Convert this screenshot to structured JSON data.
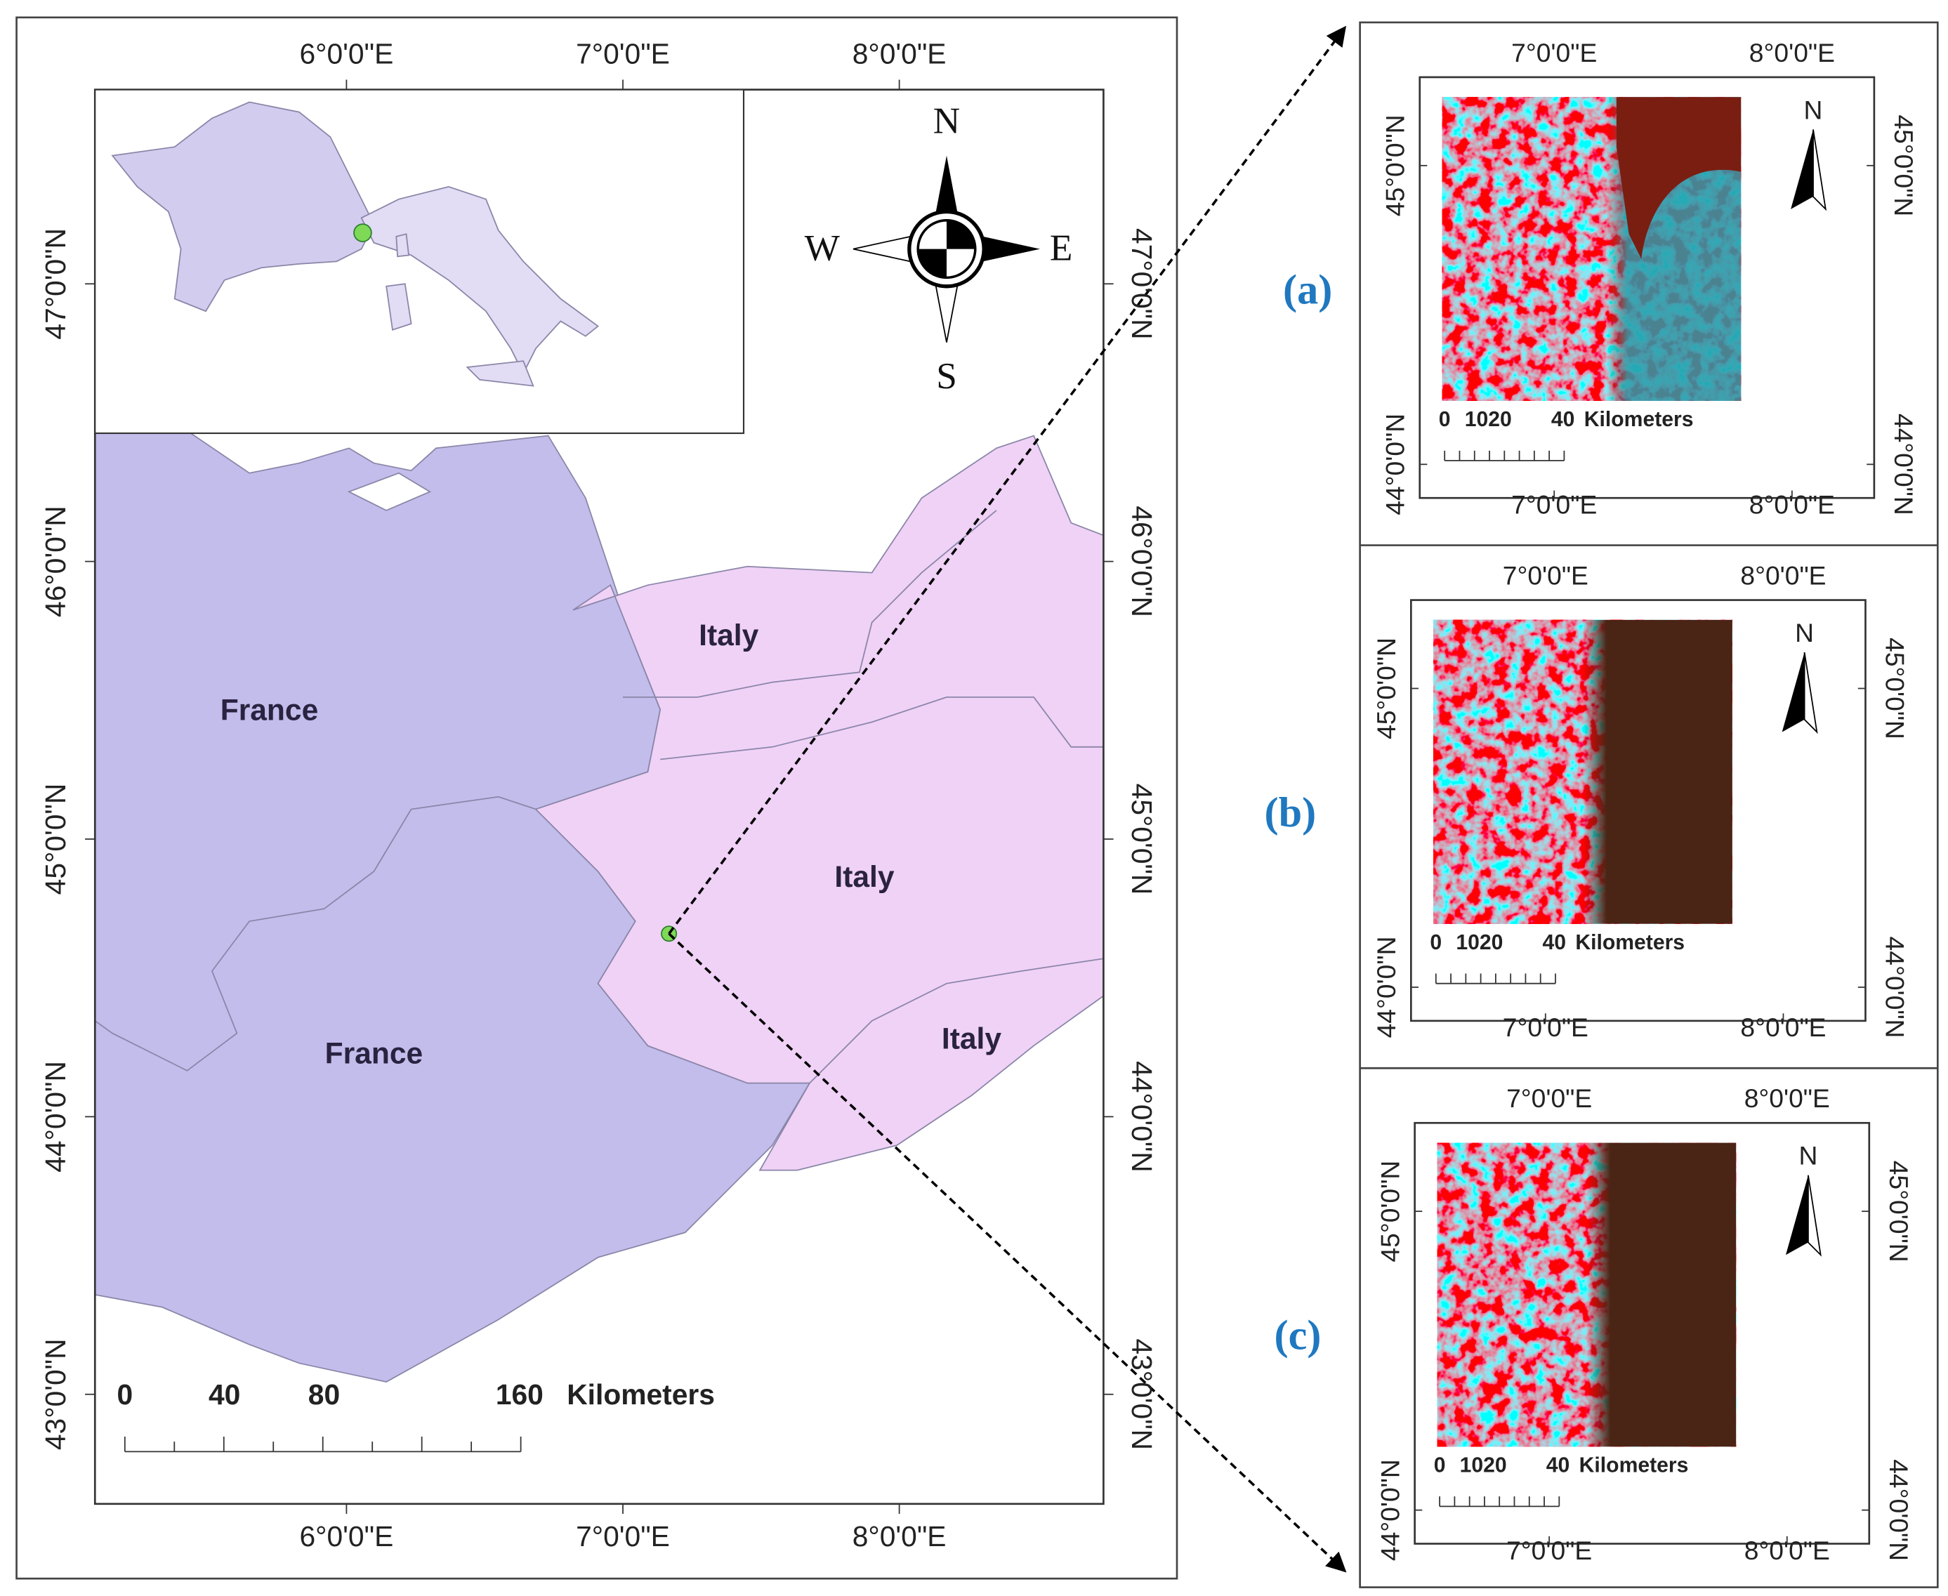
{
  "main_map": {
    "lon_ticks": [
      "6°0'0\"E",
      "7°0'0\"E",
      "8°0'0\"E"
    ],
    "lat_ticks": [
      "47°0'0\"N",
      "46°0'0\"N",
      "45°0'0\"N",
      "44°0'0\"N",
      "43°0'0\"N"
    ],
    "country_labels": [
      "Italy",
      "France",
      "Italy",
      "Italy",
      "France"
    ],
    "compass": {
      "north": "N",
      "south": "S",
      "east": "E",
      "west": "W"
    },
    "scale": {
      "ticks": [
        "0",
        "40",
        "80",
        "160"
      ],
      "unit": "Kilometers"
    }
  },
  "panels": [
    {
      "label": "(a)",
      "lon_ticks": [
        "7°0'0\"E",
        "8°0'0\"E"
      ],
      "lat_ticks": [
        "45°0'0\"N",
        "44°0'0\"N"
      ],
      "north": "N",
      "scale": {
        "ticks": [
          "0",
          "1020",
          "40"
        ],
        "unit": "Kilometers"
      }
    },
    {
      "label": "(b)",
      "lon_ticks": [
        "7°0'0\"E",
        "8°0'0\"E"
      ],
      "lat_ticks": [
        "45°0'0\"N",
        "44°0'0\"N"
      ],
      "north": "N",
      "scale": {
        "ticks": [
          "0",
          "1020",
          "40"
        ],
        "unit": "Kilometers"
      }
    },
    {
      "label": "(c)",
      "lon_ticks": [
        "7°0'0\"E",
        "8°0'0\"E"
      ],
      "lat_ticks": [
        "45°0'0\"N",
        "44°0'0\"N"
      ],
      "north": "N",
      "scale": {
        "ticks": [
          "0",
          "1020",
          "40"
        ],
        "unit": "Kilometers"
      }
    }
  ]
}
